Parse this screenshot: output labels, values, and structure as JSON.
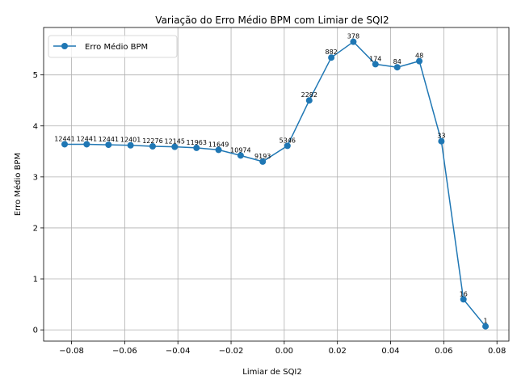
{
  "chart_data": {
    "type": "line",
    "title": "Variação do Erro Médio BPM com Limiar de SQI2",
    "xlabel": "Limiar de SQI2",
    "ylabel": "Erro Médio BPM",
    "xlim": [
      -0.0905,
      0.0845
    ],
    "ylim": [
      -0.22,
      5.93
    ],
    "xticks": [
      -0.08,
      -0.06,
      -0.04,
      -0.02,
      0.0,
      0.02,
      0.04,
      0.06,
      0.08
    ],
    "xtick_labels": [
      "−0.08",
      "−0.06",
      "−0.04",
      "−0.02",
      "0.00",
      "0.02",
      "0.04",
      "0.06",
      "0.08"
    ],
    "yticks": [
      0,
      1,
      2,
      3,
      4,
      5
    ],
    "ytick_labels": [
      "0",
      "1",
      "2",
      "3",
      "4",
      "5"
    ],
    "grid": true,
    "legend_position": "upper left",
    "color": "#1f77b4",
    "series": [
      {
        "name": "Erro Médio BPM",
        "x": [
          -0.0826,
          -0.0743,
          -0.0661,
          -0.0578,
          -0.0495,
          -0.0412,
          -0.033,
          -0.0247,
          -0.0164,
          -0.0081,
          0.0012,
          0.0094,
          0.0177,
          0.026,
          0.0343,
          0.0425,
          0.0508,
          0.0591,
          0.0674,
          0.0757
        ],
        "y": [
          3.64,
          3.64,
          3.63,
          3.62,
          3.6,
          3.59,
          3.57,
          3.53,
          3.42,
          3.3,
          3.61,
          4.5,
          5.34,
          5.65,
          5.21,
          5.15,
          5.27,
          3.7,
          0.6,
          0.07
        ],
        "labels": [
          "12441",
          "12441",
          "12441",
          "12401",
          "12276",
          "12145",
          "11963",
          "11649",
          "10974",
          "9193",
          "5346",
          "2282",
          "882",
          "378",
          "174",
          "84",
          "48",
          "33",
          "16",
          "1"
        ]
      }
    ]
  }
}
